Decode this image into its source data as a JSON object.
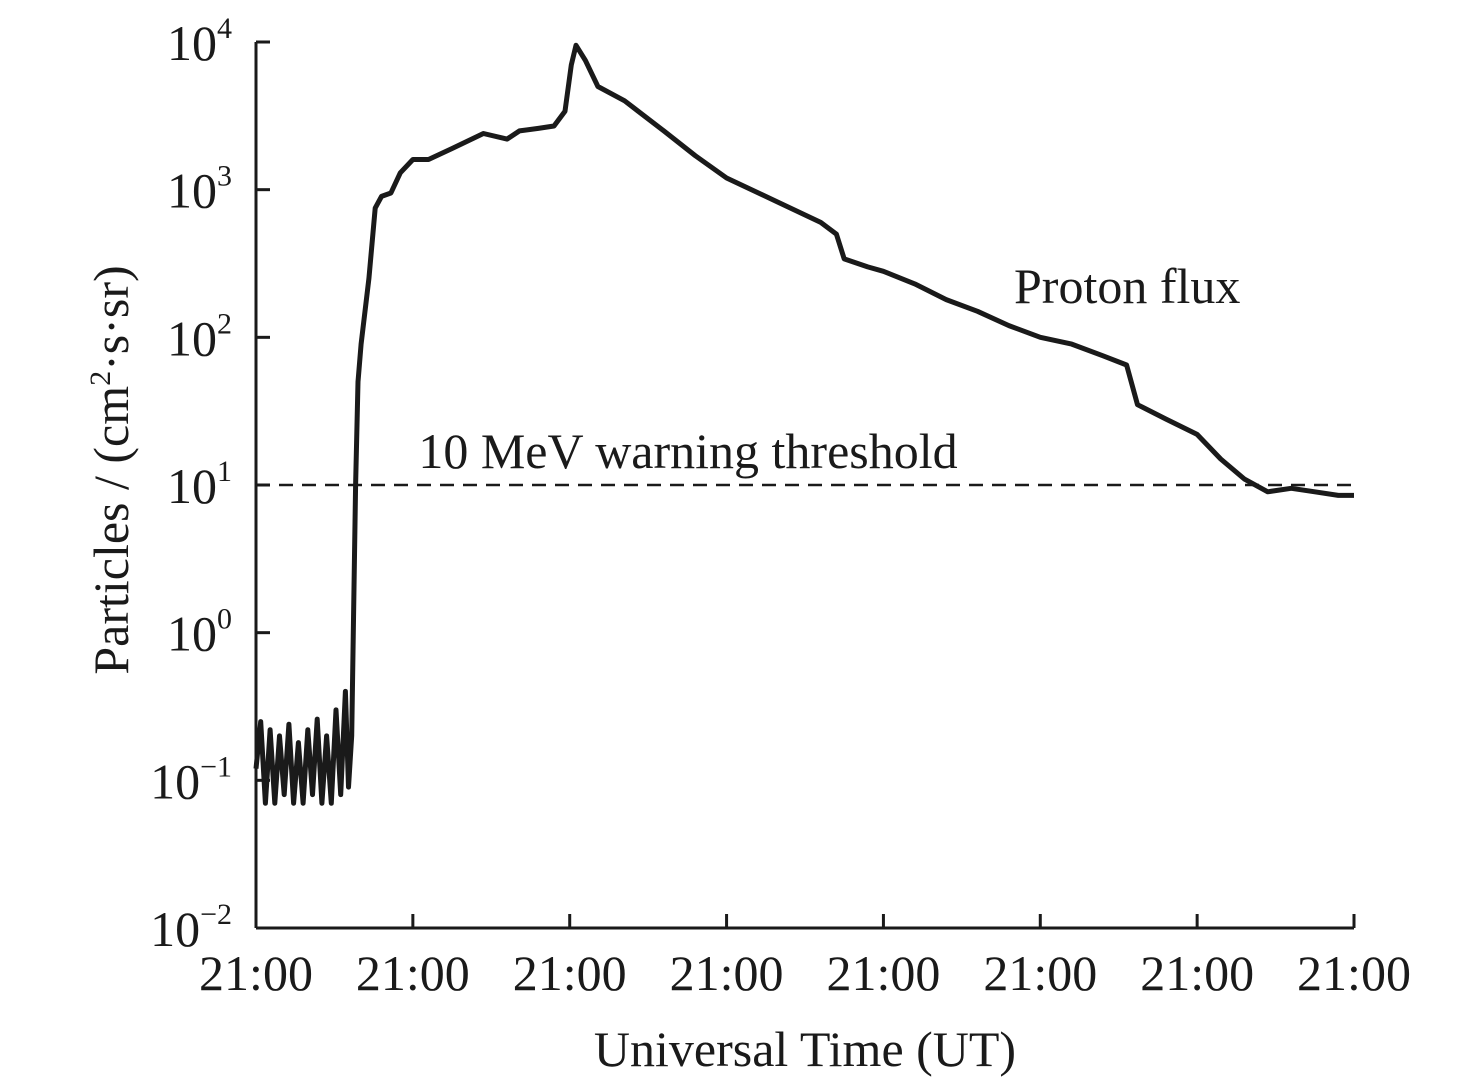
{
  "chart_data": {
    "type": "line",
    "title": "",
    "xlabel": "Universal Time (UT)",
    "ylabel": "Particles / (cm²·s·sr)",
    "ylabel_parts": {
      "pre": "Particles / (cm",
      "sup": "2",
      "post": "·s·sr)"
    },
    "yscale": "log",
    "ylim": [
      0.01,
      10000
    ],
    "y_ticks": [
      {
        "value": 0.01,
        "base": "10",
        "exp": "−2"
      },
      {
        "value": 0.1,
        "base": "10",
        "exp": "−1"
      },
      {
        "value": 1,
        "base": "10",
        "exp": "0"
      },
      {
        "value": 10,
        "base": "10",
        "exp": "1"
      },
      {
        "value": 100,
        "base": "10",
        "exp": "2"
      },
      {
        "value": 1000,
        "base": "10",
        "exp": "3"
      },
      {
        "value": 10000,
        "base": "10",
        "exp": "4"
      }
    ],
    "x_tick_labels": [
      "21:00",
      "21:00",
      "21:00",
      "21:00",
      "21:00",
      "21:00",
      "21:00",
      "21:00"
    ],
    "xlim": [
      0,
      7
    ],
    "threshold": {
      "value": 10,
      "label": "10 MeV warning threshold",
      "style": "dashed",
      "color": "#1a1a1a"
    },
    "series": [
      {
        "name": "Proton flux",
        "color": "#1a1a1a",
        "points": [
          [
            0.0,
            0.12
          ],
          [
            0.03,
            0.25
          ],
          [
            0.06,
            0.07
          ],
          [
            0.09,
            0.22
          ],
          [
            0.12,
            0.07
          ],
          [
            0.15,
            0.2
          ],
          [
            0.18,
            0.08
          ],
          [
            0.21,
            0.24
          ],
          [
            0.24,
            0.07
          ],
          [
            0.27,
            0.18
          ],
          [
            0.3,
            0.07
          ],
          [
            0.33,
            0.22
          ],
          [
            0.36,
            0.08
          ],
          [
            0.39,
            0.26
          ],
          [
            0.42,
            0.07
          ],
          [
            0.45,
            0.2
          ],
          [
            0.48,
            0.07
          ],
          [
            0.51,
            0.3
          ],
          [
            0.54,
            0.08
          ],
          [
            0.57,
            0.4
          ],
          [
            0.59,
            0.09
          ],
          [
            0.61,
            0.2
          ],
          [
            0.62,
            1.0
          ],
          [
            0.635,
            10
          ],
          [
            0.65,
            50
          ],
          [
            0.67,
            90
          ],
          [
            0.72,
            250
          ],
          [
            0.76,
            750
          ],
          [
            0.8,
            900
          ],
          [
            0.86,
            950
          ],
          [
            0.92,
            1300
          ],
          [
            1.0,
            1600
          ],
          [
            1.1,
            1600
          ],
          [
            1.25,
            1900
          ],
          [
            1.45,
            2400
          ],
          [
            1.6,
            2200
          ],
          [
            1.68,
            2500
          ],
          [
            1.8,
            2600
          ],
          [
            1.9,
            2700
          ],
          [
            1.97,
            3400
          ],
          [
            2.01,
            7000
          ],
          [
            2.04,
            9500
          ],
          [
            2.1,
            7500
          ],
          [
            2.18,
            5000
          ],
          [
            2.35,
            4000
          ],
          [
            2.6,
            2500
          ],
          [
            2.8,
            1700
          ],
          [
            3.0,
            1200
          ],
          [
            3.3,
            850
          ],
          [
            3.6,
            600
          ],
          [
            3.7,
            500
          ],
          [
            3.75,
            340
          ],
          [
            3.9,
            300
          ],
          [
            4.0,
            280
          ],
          [
            4.2,
            230
          ],
          [
            4.4,
            180
          ],
          [
            4.6,
            150
          ],
          [
            4.8,
            120
          ],
          [
            5.0,
            100
          ],
          [
            5.2,
            90
          ],
          [
            5.4,
            75
          ],
          [
            5.55,
            65
          ],
          [
            5.62,
            35
          ],
          [
            5.8,
            28
          ],
          [
            6.0,
            22
          ],
          [
            6.15,
            15
          ],
          [
            6.3,
            11
          ],
          [
            6.45,
            9
          ],
          [
            6.6,
            9.5
          ],
          [
            6.75,
            9
          ],
          [
            6.9,
            8.5
          ],
          [
            7.0,
            8.5
          ]
        ]
      }
    ],
    "annotations": [
      {
        "text": "Proton flux",
        "x": 5.6,
        "y": 150
      },
      {
        "text": "10 MeV warning threshold",
        "x": 2.8,
        "y": 15
      }
    ]
  }
}
